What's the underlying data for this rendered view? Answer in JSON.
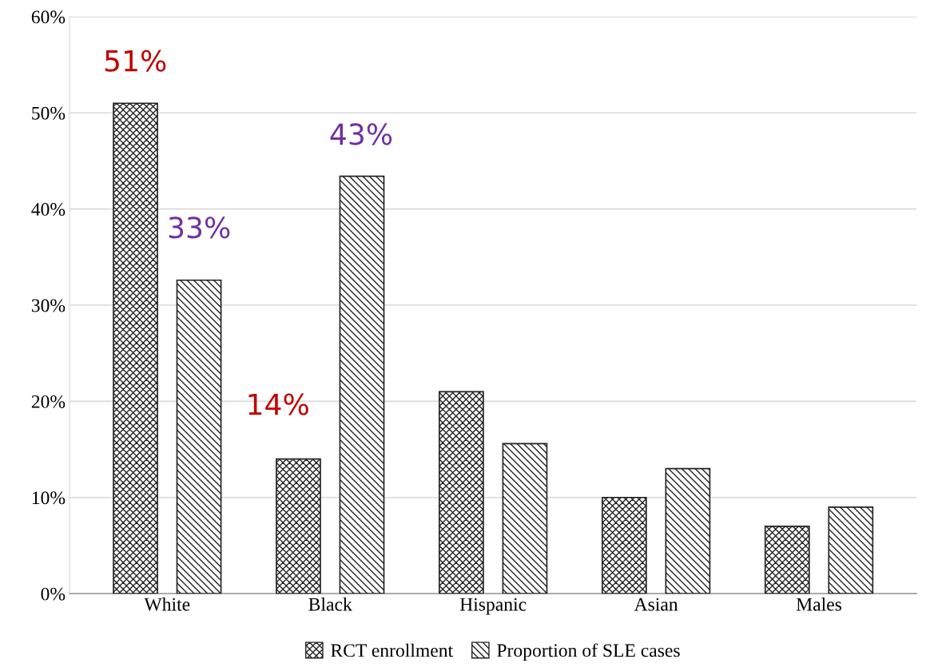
{
  "chart_data": {
    "type": "bar",
    "categories": [
      "White",
      "Black",
      "Hispanic",
      "Asian",
      "Males"
    ],
    "series": [
      {
        "name": "RCT enrollment",
        "color": "#222222",
        "values": [
          51,
          14,
          21,
          10,
          7
        ]
      },
      {
        "name": "Proportion of SLE cases",
        "color": "#222222",
        "values": [
          32.6,
          43.4,
          15.6,
          13.0,
          9.0
        ]
      }
    ],
    "ylim": [
      0,
      60
    ],
    "yticks": [
      {
        "value": 0,
        "label": "0%"
      },
      {
        "value": 10,
        "label": "10%"
      },
      {
        "value": 20,
        "label": "20%"
      },
      {
        "value": 30,
        "label": "30%"
      },
      {
        "value": 40,
        "label": "40%"
      },
      {
        "value": 50,
        "label": "50%"
      },
      {
        "value": 60,
        "label": "60%"
      }
    ],
    "grid": "y",
    "legend": "bottom",
    "annotations": [
      "51%",
      "33%",
      "43%",
      "14%"
    ]
  }
}
